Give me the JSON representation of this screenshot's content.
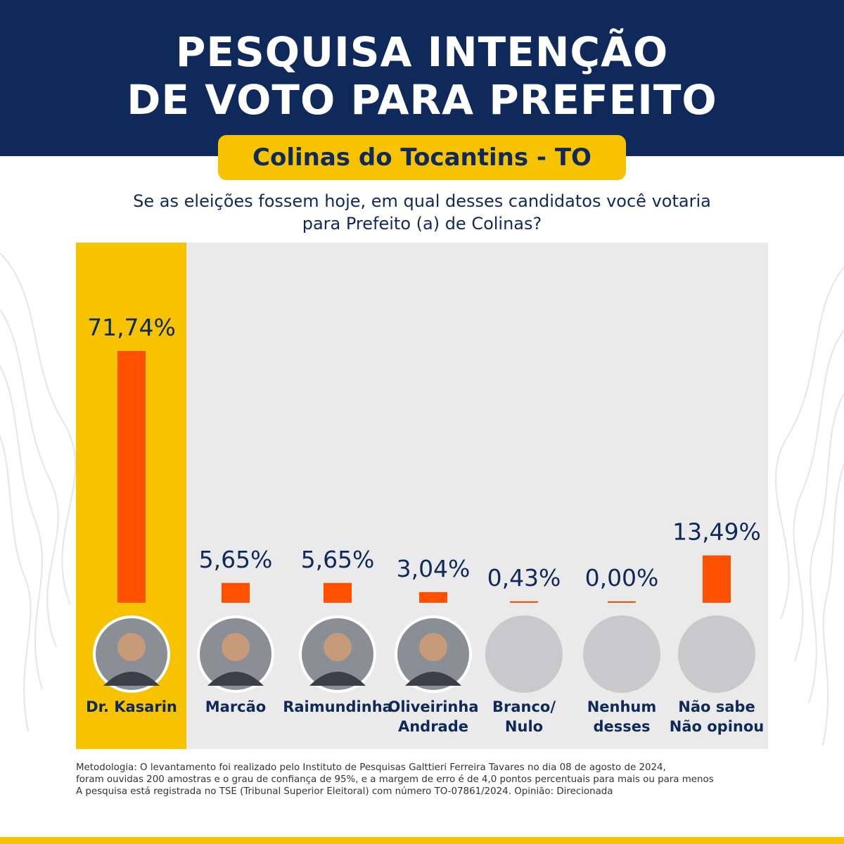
{
  "header": {
    "title_line1": "PESQUISA INTENÇÃO",
    "title_line2": "DE VOTO PARA PREFEITO",
    "subtitle": "Colinas do Tocantins - TO"
  },
  "question": {
    "line1": "Se as eleições fossem hoje, em qual desses candidatos você votaria",
    "line2": "para Prefeito (a) de Colinas?"
  },
  "colors": {
    "navy": "#0f2a5a",
    "yellow": "#f7c300",
    "bar": "#ff5000",
    "panel": "#eaeaea"
  },
  "chart_data": {
    "type": "bar",
    "title": "",
    "xlabel": "",
    "ylabel": "",
    "categories": [
      "Dr. Kasarin",
      "Marcão",
      "Raimundinha",
      "Oliveirinha Andrade",
      "Branco/ Nulo",
      "Nenhum desses",
      "Não sabe Não opinou"
    ],
    "category_lines": [
      [
        "Dr. Kasarin"
      ],
      [
        "Marcão"
      ],
      [
        "Raimundinha"
      ],
      [
        "Oliveirinha",
        "Andrade"
      ],
      [
        "Branco/",
        "Nulo"
      ],
      [
        "Nenhum",
        "desses"
      ],
      [
        "Não sabe",
        "Não opinou"
      ]
    ],
    "values": [
      71.74,
      5.65,
      5.65,
      3.04,
      0.43,
      0.0,
      13.49
    ],
    "value_labels": [
      "71,74%",
      "5,65%",
      "5,65%",
      "3,04%",
      "0,43%",
      "0,00%",
      "13,49%"
    ],
    "avatars": [
      "photo-icon",
      "photo-icon",
      "photo-icon",
      "photo-icon",
      "blank-avatar-icon",
      "blank-avatar-icon",
      "blank-avatar-icon"
    ],
    "highlighted_index": 0,
    "ylim": [
      0,
      71.74
    ],
    "grid": false,
    "legend": "none"
  },
  "methodology": {
    "line1": "Metodologia: O levantamento foi realizado pelo Instituto de Pesquisas Galttieri Ferreira Tavares no dia 08 de agosto de 2024,",
    "line2": "foram ouvidas 200 amostras e o grau de confiança de 95%, e a margem de erro é de 4,0 pontos percentuais para mais ou para menos",
    "line3": "A pesquisa está registrada no TSE (Tribunal Superior Eleitoral) com número TO-07861/2024. Opinião: Direcionada"
  }
}
